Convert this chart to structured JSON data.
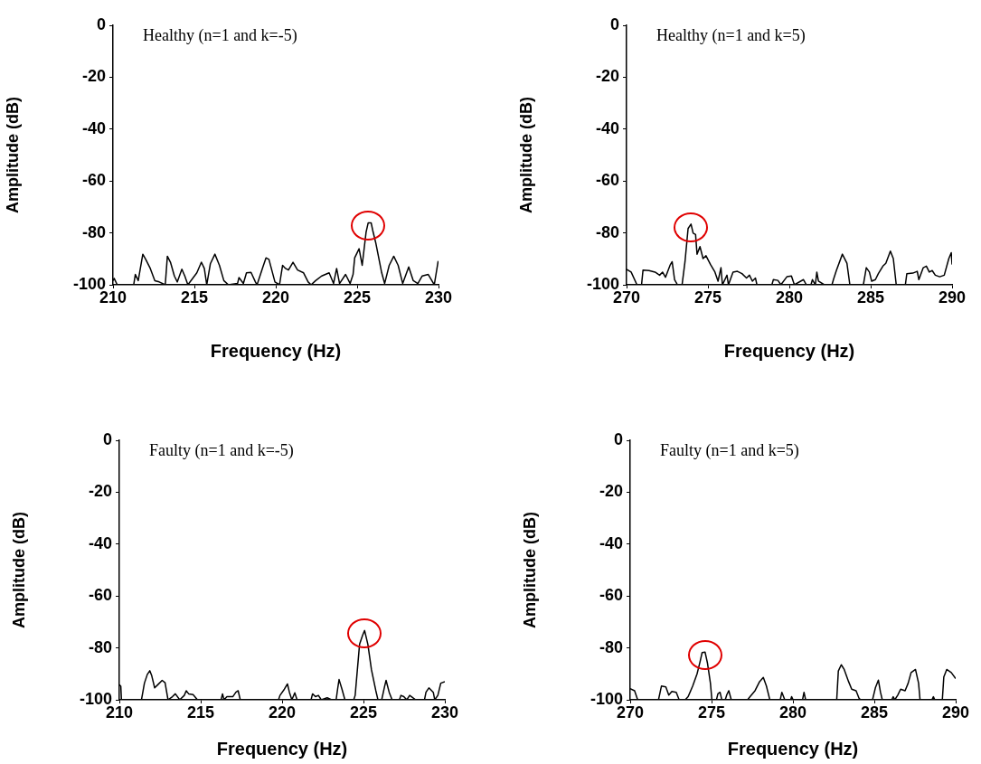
{
  "chart_data": [
    {
      "type": "line",
      "title": "Healthy (n=1 and k=-5)",
      "xlabel": "Frequency (Hz)",
      "ylabel": "Amplitude (dB)",
      "color": "#000000",
      "marker": "none",
      "xlim": [
        210,
        230
      ],
      "xticks": [
        210,
        215,
        220,
        225,
        230
      ],
      "ylim": [
        -100,
        0
      ],
      "yticks": [
        0,
        -20,
        -40,
        -60,
        -80,
        -100
      ],
      "x": [
        210,
        210.07,
        210.26,
        211.27,
        211.37,
        211.55,
        211.83,
        212.01,
        212.29,
        212.57,
        212.84,
        213.21,
        213.34,
        213.53,
        213.77,
        213.95,
        214.23,
        214.41,
        214.6,
        215.15,
        215.43,
        215.61,
        215.76,
        215.98,
        216.26,
        216.54,
        216.81,
        217.09,
        217.65,
        217.74,
        218.01,
        218.2,
        218.48,
        218.75,
        218.85,
        219.21,
        219.4,
        219.58,
        219.95,
        220.23,
        220.42,
        220.6,
        220.78,
        221.06,
        221.34,
        221.71,
        221.99,
        222.17,
        222.45,
        222.82,
        223.28,
        223.55,
        223.74,
        223.92,
        224.29,
        224.57,
        224.75,
        224.85,
        225.12,
        225.31,
        225.55,
        225.68,
        225.86,
        225.96,
        226.14,
        226.51,
        226.69,
        226.97,
        227.25,
        227.52,
        227.8,
        228.17,
        228.45,
        228.73,
        229.0,
        229.37,
        229.74,
        229.98
      ],
      "values": [
        -98.4,
        -97.5,
        -100,
        -100,
        -96.0,
        -98.4,
        -88.2,
        -90.2,
        -93.7,
        -98.4,
        -98.9,
        -100,
        -89.0,
        -91.3,
        -96.6,
        -98.9,
        -94.0,
        -96.6,
        -100,
        -95.4,
        -91.3,
        -93.7,
        -100,
        -91.9,
        -88.2,
        -92.5,
        -98.4,
        -100,
        -99.5,
        -97.2,
        -99.5,
        -95.4,
        -95.2,
        -98.9,
        -100,
        -93.1,
        -89.6,
        -90.2,
        -98.9,
        -100,
        -92.5,
        -93.7,
        -94.3,
        -91.3,
        -94.3,
        -95.4,
        -98.9,
        -100,
        -98.4,
        -96.6,
        -95.4,
        -99.5,
        -93.7,
        -99.5,
        -96.0,
        -99.5,
        -96.0,
        -89.6,
        -86.1,
        -92.5,
        -79.7,
        -76.1,
        -76.1,
        -79.1,
        -83.7,
        -95.4,
        -99.5,
        -92.5,
        -89.0,
        -92.5,
        -99.5,
        -93.1,
        -98.4,
        -99.5,
        -96.6,
        -96.0,
        -100,
        -90.8
      ]
    },
    {
      "type": "line",
      "title": "Healthy (n=1 and k=5)",
      "xlabel": "Frequency (Hz)",
      "ylabel": "Amplitude (dB)",
      "color": "#000000",
      "marker": "none",
      "xlim": [
        270,
        290
      ],
      "xticks": [
        270,
        275,
        280,
        285,
        290
      ],
      "ylim": [
        -100,
        0
      ],
      "yticks": [
        0,
        -20,
        -40,
        -60,
        -80,
        -100
      ],
      "x": [
        270,
        270.28,
        270.64,
        270.92,
        271.01,
        271.38,
        271.75,
        272.03,
        272.21,
        272.39,
        272.67,
        272.8,
        272.95,
        273.13,
        273.41,
        273.59,
        273.78,
        273.96,
        274.09,
        274.24,
        274.33,
        274.51,
        274.7,
        274.88,
        275.16,
        275.43,
        275.62,
        275.8,
        275.89,
        276.17,
        276.26,
        276.54,
        276.81,
        277.09,
        277.37,
        277.55,
        277.73,
        277.92,
        278.01,
        278.93,
        279.02,
        279.3,
        279.48,
        279.85,
        280.13,
        280.31,
        280.87,
        281.05,
        281.33,
        281.42,
        281.6,
        281.69,
        281.79,
        282.15,
        282.62,
        282.71,
        282.89,
        283.26,
        283.54,
        283.72,
        284.55,
        284.73,
        284.92,
        285.06,
        285.29,
        285.47,
        285.75,
        285.93,
        286.21,
        286.39,
        286.57,
        287.13,
        287.22,
        287.59,
        287.86,
        287.96,
        288.23,
        288.42,
        288.6,
        288.78,
        288.97,
        289.24,
        289.52,
        289.8,
        289.95,
        290
      ],
      "values": [
        -94.0,
        -95.1,
        -100,
        -100,
        -94.3,
        -94.5,
        -95.1,
        -96.3,
        -95.1,
        -97.1,
        -92.5,
        -91.1,
        -98.0,
        -100,
        -100,
        -91.1,
        -78.3,
        -76.6,
        -80.1,
        -80.6,
        -88.2,
        -85.3,
        -89.9,
        -88.8,
        -92.2,
        -95.1,
        -98.6,
        -93.4,
        -100,
        -96.3,
        -100,
        -95.1,
        -94.8,
        -95.7,
        -97.4,
        -96.3,
        -98.6,
        -97.4,
        -100,
        -100,
        -98.0,
        -98.3,
        -100,
        -96.9,
        -96.6,
        -100,
        -98.0,
        -100,
        -100,
        -98.0,
        -100,
        -95.1,
        -98.6,
        -100,
        -100,
        -98.0,
        -94.5,
        -88.2,
        -91.7,
        -100,
        -100,
        -93.4,
        -95.1,
        -98.6,
        -98.0,
        -95.7,
        -92.8,
        -91.7,
        -87.0,
        -89.9,
        -100,
        -100,
        -95.7,
        -95.5,
        -94.8,
        -98.0,
        -93.4,
        -92.8,
        -95.1,
        -94.5,
        -96.3,
        -96.9,
        -96.3,
        -89.9,
        -87.6,
        -92.2
      ]
    },
    {
      "type": "line",
      "title": "Faulty (n=1 and k=-5)",
      "xlabel": "Frequency (Hz)",
      "ylabel": "Amplitude (dB)",
      "color": "#000000",
      "marker": "none",
      "xlim": [
        210,
        230
      ],
      "xticks": [
        210,
        215,
        220,
        225,
        230
      ],
      "ylim": [
        -100,
        0
      ],
      "yticks": [
        0,
        -20,
        -40,
        -60,
        -80,
        -100
      ],
      "x": [
        210,
        210.09,
        210.13,
        211.36,
        211.54,
        211.72,
        211.87,
        211.99,
        212.17,
        212.36,
        212.63,
        212.81,
        212.99,
        213.26,
        213.44,
        213.71,
        213.99,
        214.11,
        214.26,
        214.53,
        214.8,
        216.25,
        216.34,
        216.43,
        216.61,
        216.97,
        217.16,
        217.3,
        217.43,
        219.78,
        219.87,
        220.14,
        220.33,
        220.45,
        220.6,
        220.78,
        220.92,
        221.78,
        221.87,
        222.05,
        222.23,
        222.41,
        222.77,
        223.04,
        223.32,
        223.41,
        223.5,
        223.68,
        223.86,
        224.4,
        224.49,
        224.76,
        224.95,
        225.07,
        225.27,
        225.49,
        225.76,
        225.89,
        226.12,
        226.3,
        226.39,
        226.58,
        226.76,
        227.21,
        227.3,
        227.48,
        227.66,
        227.84,
        228.03,
        228.21,
        228.75,
        228.84,
        229.02,
        229.29,
        229.38,
        229.57,
        229.75,
        230
      ],
      "values": [
        -94.2,
        -94.8,
        -100,
        -100,
        -93.6,
        -90.2,
        -88.8,
        -90.7,
        -95.4,
        -94.2,
        -92.5,
        -93.4,
        -100,
        -98.8,
        -97.7,
        -100,
        -98.3,
        -96.5,
        -97.7,
        -98.0,
        -100,
        -100,
        -97.7,
        -100,
        -98.8,
        -98.8,
        -97.1,
        -96.5,
        -100,
        -100,
        -98.3,
        -95.9,
        -93.9,
        -97.1,
        -100,
        -97.3,
        -100,
        -100,
        -97.7,
        -98.8,
        -98.3,
        -100,
        -99.2,
        -100,
        -100,
        -95.9,
        -92.2,
        -95.9,
        -100,
        -100,
        -98.3,
        -78.6,
        -75.1,
        -73.3,
        -78.6,
        -88.4,
        -96.5,
        -100,
        -100,
        -94.8,
        -92.5,
        -97.1,
        -100,
        -100,
        -98.3,
        -98.8,
        -100,
        -98.3,
        -99.2,
        -100,
        -100,
        -97.1,
        -95.4,
        -97.1,
        -100,
        -98.3,
        -93.6,
        -93.0
      ]
    },
    {
      "type": "line",
      "title": "Faulty (n=1 and k=5)",
      "xlabel": "Frequency (Hz)",
      "ylabel": "Amplitude (dB)",
      "color": "#000000",
      "marker": "none",
      "xlim": [
        270,
        290
      ],
      "xticks": [
        270,
        275,
        280,
        285,
        290
      ],
      "ylim": [
        -100,
        0
      ],
      "yticks": [
        0,
        -20,
        -40,
        -60,
        -80,
        -100
      ],
      "x": [
        270,
        270.27,
        270.46,
        271.74,
        271.92,
        272.19,
        272.37,
        272.56,
        272.83,
        273.01,
        273.38,
        273.56,
        273.84,
        274.11,
        274.29,
        274.42,
        274.6,
        274.75,
        274.93,
        275.02,
        275.3,
        275.39,
        275.52,
        275.63,
        275.84,
        275.94,
        276.06,
        276.21,
        277.21,
        277.4,
        277.67,
        277.95,
        278.18,
        278.37,
        278.58,
        279.22,
        279.32,
        279.5,
        279.86,
        279.92,
        280.01,
        280.59,
        280.68,
        280.78,
        282.69,
        282.79,
        282.97,
        283.15,
        283.42,
        283.61,
        283.88,
        284.06,
        284.16,
        284.89,
        285.07,
        285.25,
        285.38,
        285.49,
        286.07,
        286.16,
        286.26,
        286.44,
        286.62,
        286.89,
        287.08,
        287.26,
        287.53,
        287.72,
        287.81,
        288.54,
        288.63,
        288.72,
        289.18,
        289.27,
        289.45,
        289.73,
        290
      ],
      "values": [
        -95.7,
        -96.5,
        -100,
        -100,
        -94.7,
        -95.0,
        -98.2,
        -96.8,
        -97.1,
        -100,
        -100,
        -98.8,
        -94.7,
        -90.0,
        -85.4,
        -81.8,
        -81.6,
        -85.9,
        -93.6,
        -100,
        -100,
        -97.7,
        -97.1,
        -100,
        -100,
        -98.0,
        -96.5,
        -100,
        -100,
        -98.5,
        -96.5,
        -93.0,
        -91.4,
        -94.7,
        -100,
        -100,
        -97.1,
        -100,
        -100,
        -98.8,
        -100,
        -100,
        -97.1,
        -100,
        -100,
        -88.9,
        -86.5,
        -88.3,
        -93.0,
        -95.9,
        -96.5,
        -99.4,
        -100,
        -100,
        -95.3,
        -92.4,
        -97.1,
        -100,
        -100,
        -98.8,
        -100,
        -98.2,
        -95.9,
        -96.5,
        -93.6,
        -89.5,
        -88.3,
        -93.6,
        -100,
        -100,
        -98.8,
        -100,
        -100,
        -91.2,
        -88.3,
        -89.5,
        -91.8
      ]
    }
  ]
}
